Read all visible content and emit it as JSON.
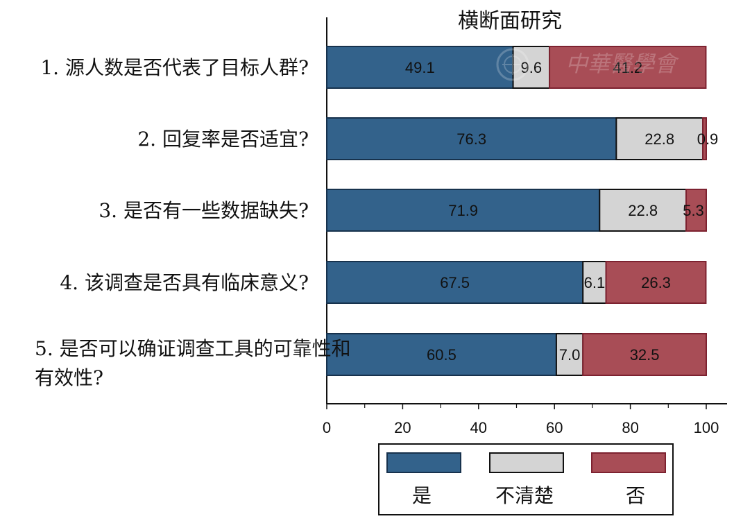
{
  "chart_data": {
    "type": "bar",
    "orientation": "horizontal",
    "stacked": true,
    "title": "横断面研究",
    "categories": [
      "1. 源人数是否代表了目标人群?",
      "2. 回复率是否适宜?",
      "3. 是否有一些数据缺失?",
      "4. 该调查是否具有临床意义?",
      "5. 是否可以确证调查工具的可靠性和有效性?"
    ],
    "series": [
      {
        "name": "是",
        "values": [
          49.1,
          76.3,
          71.9,
          67.5,
          60.5
        ],
        "color": "#33628b",
        "stroke": "#17324d"
      },
      {
        "name": "不清楚",
        "values": [
          9.6,
          22.8,
          22.8,
          6.1,
          7.0
        ],
        "color": "#d4d4d4",
        "stroke": "#111111"
      },
      {
        "name": "否",
        "values": [
          41.2,
          0.9,
          5.3,
          26.3,
          32.5
        ],
        "color": "#a84d56",
        "stroke": "#7d2230"
      }
    ],
    "xlim": [
      0,
      100
    ],
    "xticks": [
      0,
      20,
      40,
      60,
      80,
      100
    ],
    "xlabel": "",
    "ylabel": "",
    "grid": false,
    "legend_position": "bottom"
  },
  "watermark": "中華醫學會"
}
